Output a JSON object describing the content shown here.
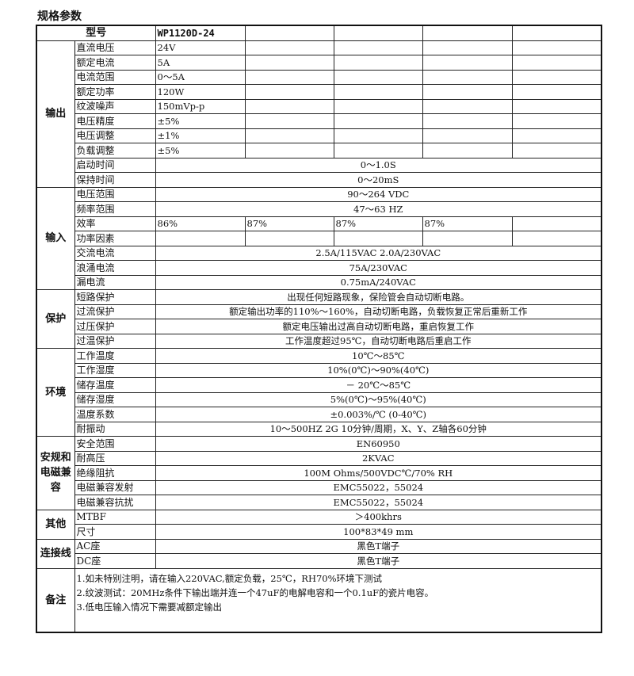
{
  "title": "规格参数",
  "header": {
    "label": "型号",
    "values": [
      "WP1120D-24",
      "",
      "",
      "",
      ""
    ]
  },
  "sections": [
    {
      "category": "输出",
      "rows": [
        {
          "label": "直流电压",
          "values": [
            "24V",
            "",
            "",
            "",
            ""
          ]
        },
        {
          "label": "额定电流",
          "values": [
            "5A",
            "",
            "",
            "",
            ""
          ]
        },
        {
          "label": "电流范围",
          "values": [
            "0～5A",
            "",
            "",
            "",
            ""
          ]
        },
        {
          "label": "额定功率",
          "values": [
            "120W",
            "",
            "",
            "",
            ""
          ]
        },
        {
          "label": "纹波噪声",
          "values": [
            "150mVp-p",
            "",
            "",
            "",
            ""
          ]
        },
        {
          "label": "电压精度",
          "values": [
            "±5%",
            "",
            "",
            "",
            ""
          ]
        },
        {
          "label": "电压调整",
          "values": [
            "±1%",
            "",
            "",
            "",
            ""
          ]
        },
        {
          "label": "负载调整",
          "values": [
            "±5%",
            "",
            "",
            "",
            ""
          ]
        },
        {
          "label": "启动时间",
          "value": "0～1.0S"
        },
        {
          "label": "保持时间",
          "value": "0～20mS"
        }
      ]
    },
    {
      "category": "输入",
      "rows": [
        {
          "label": "电压范围",
          "value": "90～264 VDC"
        },
        {
          "label": "频率范围",
          "value": "47～63 HZ"
        },
        {
          "label": "效率",
          "values": [
            "86%",
            "87%",
            "87%",
            "87%",
            ""
          ]
        },
        {
          "label": "功率因素",
          "values": [
            "",
            "",
            "",
            "",
            ""
          ]
        },
        {
          "label": "交流电流",
          "value": "2.5A/115VAC  2.0A/230VAC"
        },
        {
          "label": "浪涌电流",
          "value": "75A/230VAC"
        },
        {
          "label": "漏电流",
          "value": "0.75mA/240VAC"
        }
      ]
    },
    {
      "category": "保护",
      "rows": [
        {
          "label": "短路保护",
          "value": "出现任何短路现象，保险管会自动切断电路。"
        },
        {
          "label": "过流保护",
          "value": "额定输出功率的110%～160%，自动切断电路，负载恢复正常后重新工作"
        },
        {
          "label": "过压保护",
          "value": "额定电压输出过高自动切断电路，重启恢复工作"
        },
        {
          "label": "过温保护",
          "value": "工作温度超过95℃，自动切断电路后重启工作"
        }
      ]
    },
    {
      "category": "环境",
      "rows": [
        {
          "label": "工作温度",
          "value": "10℃～85℃"
        },
        {
          "label": "工作湿度",
          "value": "10%(0℃)～90%(40℃)"
        },
        {
          "label": "储存温度",
          "value": "－ 20℃～85℃"
        },
        {
          "label": "储存湿度",
          "value": "5%(0℃)～95%(40℃)"
        },
        {
          "label": "温度系数",
          "value": "±0.003%/℃ (0-40℃)"
        },
        {
          "label": "耐振动",
          "value": "10～500HZ 2G 10分钟/周期，X、Y、Z轴各60分钟"
        }
      ]
    },
    {
      "category": "安规和电磁兼容",
      "rows": [
        {
          "label": "安全范围",
          "value": "EN60950"
        },
        {
          "label": "耐高压",
          "value": "2KVAC"
        },
        {
          "label": "绝缘阻抗",
          "value": "100M Ohms/500VDC℃/70% RH"
        },
        {
          "label": "电磁兼容发射",
          "value": "EMC55022，55024"
        },
        {
          "label": "电磁兼容抗扰",
          "value": "EMC55022，55024"
        }
      ]
    },
    {
      "category": "其他",
      "rows": [
        {
          "label": "MTBF",
          "value": "＞400khrs"
        },
        {
          "label": "尺寸",
          "value": "100*83*49 mm"
        }
      ]
    },
    {
      "category": "连接线",
      "rows": [
        {
          "label": "AC座",
          "value": "黑色T端子"
        },
        {
          "label": "DC座",
          "value": "黑色T端子"
        }
      ]
    }
  ],
  "notes": {
    "category": "备注",
    "items": [
      "1.如未特别注明，请在输入220VAC,额定负载，25℃，RH70%环境下测试",
      "2.纹波测试：20MHz条件下输出端并连一个47uF的电解电容和一个0.1uF的瓷片电容。",
      "3.低电压输入情况下需要减额定输出"
    ]
  }
}
